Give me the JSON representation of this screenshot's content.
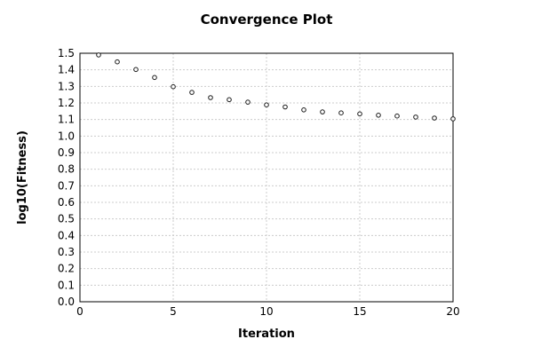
{
  "window": {
    "background": "#ffffff"
  },
  "chart_data": {
    "type": "scatter",
    "title": "Convergence Plot",
    "xlabel": "Iteration",
    "ylabel": "log10(Fitness)",
    "x": [
      1,
      2,
      3,
      4,
      5,
      6,
      7,
      8,
      9,
      10,
      11,
      12,
      13,
      14,
      15,
      16,
      17,
      18,
      19,
      20
    ],
    "y": [
      1.49,
      1.448,
      1.402,
      1.354,
      1.298,
      1.264,
      1.232,
      1.22,
      1.205,
      1.188,
      1.176,
      1.158,
      1.146,
      1.14,
      1.134,
      1.126,
      1.121,
      1.115,
      1.109,
      1.104
    ],
    "xlim": [
      0,
      20
    ],
    "ylim": [
      0.0,
      1.5
    ],
    "x_ticks": [
      0,
      5,
      10,
      15,
      20
    ],
    "x_tick_labels": [
      "0",
      "5",
      "10",
      "15",
      "20"
    ],
    "y_tick_step": 0.1,
    "y_tick_labels": [
      "0.0",
      "0.1",
      "0.2",
      "0.3",
      "0.4",
      "0.5",
      "0.6",
      "0.7",
      "0.8",
      "0.9",
      "1.0",
      "1.1",
      "1.2",
      "1.3",
      "1.4",
      "1.5"
    ],
    "grid": true,
    "grid_style": "dashed",
    "legend": null,
    "marker": "open-circle",
    "colors": {
      "marker_stroke": "#1a1a1a",
      "marker_fill": "#ffffff",
      "grid": "#cccccc",
      "axis_frame": "#000000",
      "text": "#000000",
      "background": "#ffffff"
    }
  }
}
